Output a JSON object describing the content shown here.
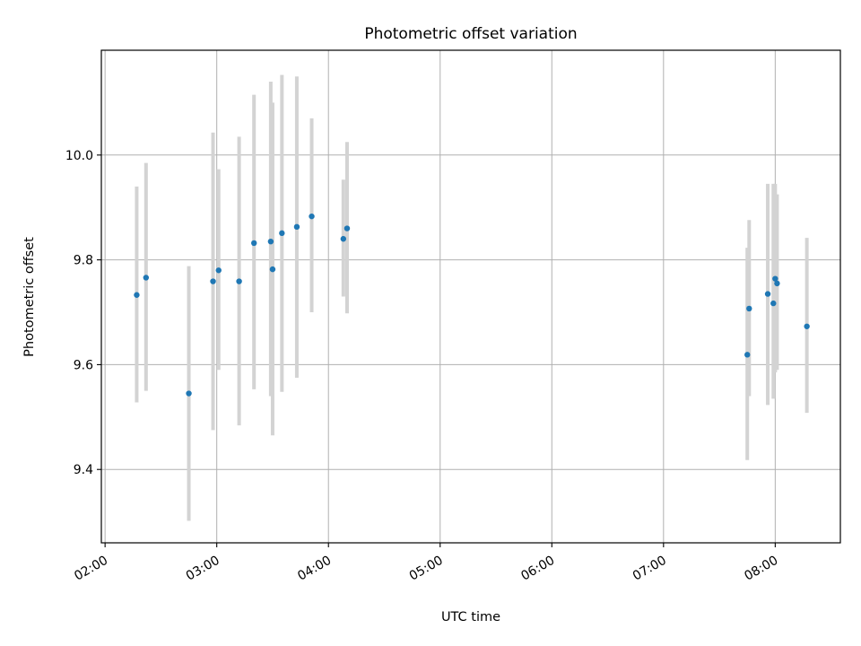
{
  "chart_data": {
    "type": "scatter",
    "title": "Photometric offset variation",
    "xlabel": "UTC time",
    "ylabel": "Photometric offset",
    "xlim": [
      "01:58",
      "08:35"
    ],
    "ylim": [
      9.26,
      10.2
    ],
    "x_ticks": [
      "02:00",
      "03:00",
      "04:00",
      "05:00",
      "06:00",
      "07:00",
      "08:00"
    ],
    "y_ticks": [
      9.4,
      9.6,
      9.8,
      10.0
    ],
    "y_tick_labels": [
      "9.4",
      "9.6",
      "9.8",
      "10.0"
    ],
    "grid": true,
    "marker_color": "#1f77b4",
    "errorbar_color": "#d3d3d3",
    "points": [
      {
        "t": "02:17",
        "y": 9.733,
        "lo": 9.528,
        "hi": 9.94
      },
      {
        "t": "02:22",
        "y": 9.766,
        "lo": 9.55,
        "hi": 9.985
      },
      {
        "t": "02:45",
        "y": 9.545,
        "lo": 9.302,
        "hi": 9.788
      },
      {
        "t": "02:58",
        "y": 9.759,
        "lo": 9.475,
        "hi": 10.043
      },
      {
        "t": "03:01",
        "y": 9.78,
        "lo": 9.59,
        "hi": 9.973
      },
      {
        "t": "03:12",
        "y": 9.759,
        "lo": 9.484,
        "hi": 10.035
      },
      {
        "t": "03:20",
        "y": 9.832,
        "lo": 9.553,
        "hi": 10.115
      },
      {
        "t": "03:29",
        "y": 9.835,
        "lo": 9.54,
        "hi": 10.14
      },
      {
        "t": "03:30",
        "y": 9.782,
        "lo": 9.465,
        "hi": 10.1
      },
      {
        "t": "03:35",
        "y": 9.851,
        "lo": 9.548,
        "hi": 10.153
      },
      {
        "t": "03:43",
        "y": 9.863,
        "lo": 9.575,
        "hi": 10.15
      },
      {
        "t": "03:51",
        "y": 9.883,
        "lo": 9.7,
        "hi": 10.07
      },
      {
        "t": "04:08",
        "y": 9.84,
        "lo": 9.73,
        "hi": 9.953
      },
      {
        "t": "04:10",
        "y": 9.86,
        "lo": 9.698,
        "hi": 10.025
      },
      {
        "t": "07:45",
        "y": 9.619,
        "lo": 9.418,
        "hi": 9.823
      },
      {
        "t": "07:46",
        "y": 9.707,
        "lo": 9.54,
        "hi": 9.876
      },
      {
        "t": "07:56",
        "y": 9.735,
        "lo": 9.523,
        "hi": 9.945
      },
      {
        "t": "07:59",
        "y": 9.717,
        "lo": 9.535,
        "hi": 9.945
      },
      {
        "t": "08:00",
        "y": 9.764,
        "lo": 9.585,
        "hi": 9.945
      },
      {
        "t": "08:01",
        "y": 9.755,
        "lo": 9.59,
        "hi": 9.925
      },
      {
        "t": "08:17",
        "y": 9.673,
        "lo": 9.508,
        "hi": 9.842
      }
    ]
  }
}
